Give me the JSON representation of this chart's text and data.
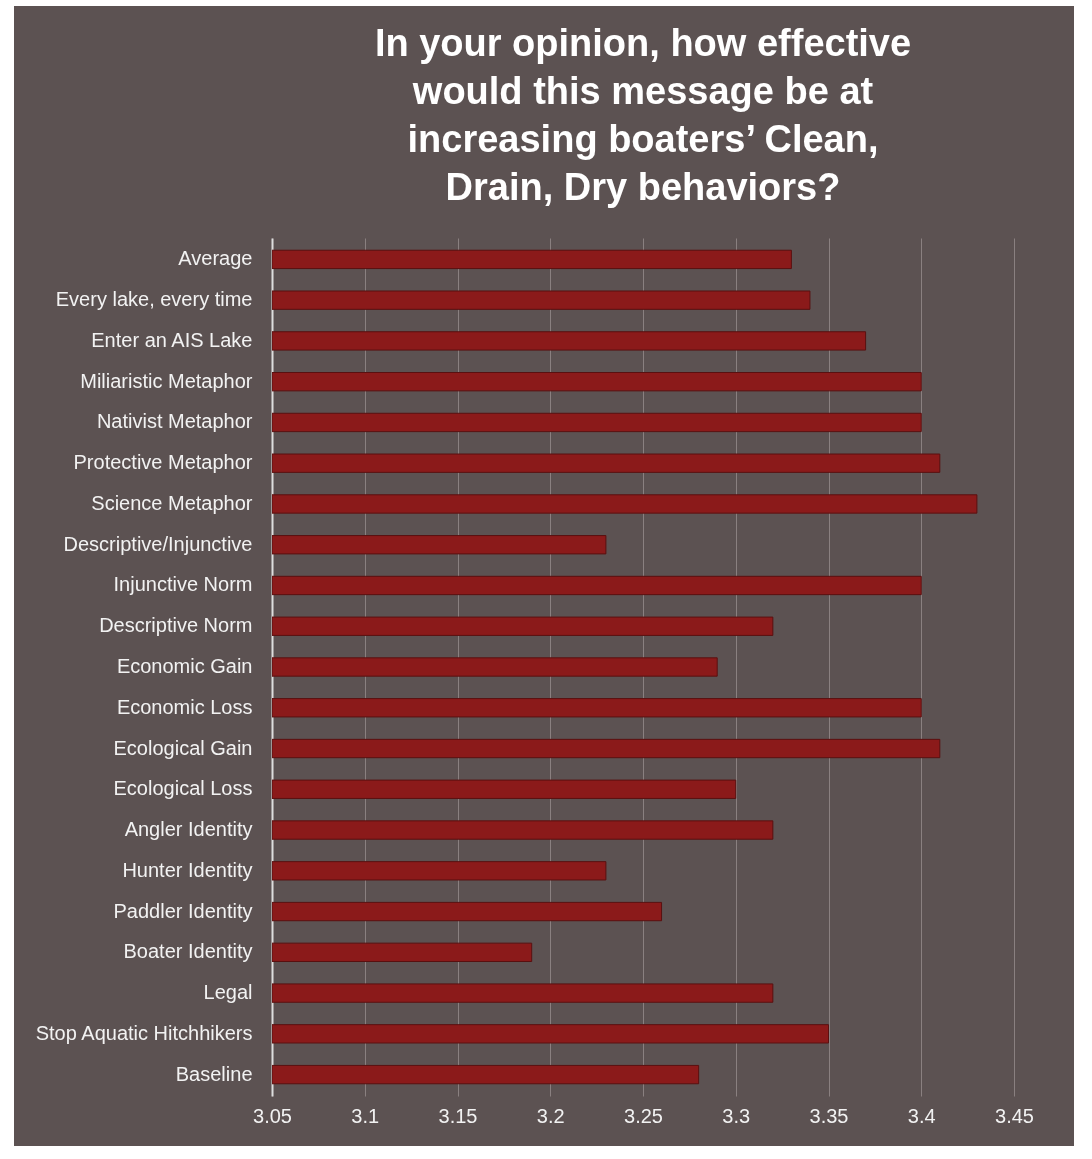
{
  "chart_data": {
    "type": "bar",
    "orientation": "horizontal",
    "title": "In your opinion, how effective would this message be at increasing boaters’ Clean, Drain, Dry behaviors?",
    "categories": [
      "Average",
      "Every lake, every time",
      "Enter an AIS Lake",
      "Miliaristic Metaphor",
      "Nativist Metaphor",
      "Protective Metaphor",
      "Science Metaphor",
      "Descriptive/Injunctive",
      "Injunctive Norm",
      "Descriptive Norm",
      "Economic Gain",
      "Economic Loss",
      "Ecological Gain",
      "Ecological Loss",
      "Angler Identity",
      "Hunter Identity",
      "Paddler Identity",
      "Boater Identity",
      "Legal",
      "Stop Aquatic Hitchhikers",
      "Baseline"
    ],
    "values": [
      3.33,
      3.34,
      3.37,
      3.4,
      3.4,
      3.41,
      3.43,
      3.23,
      3.4,
      3.32,
      3.29,
      3.4,
      3.41,
      3.3,
      3.32,
      3.23,
      3.26,
      3.19,
      3.32,
      3.35,
      3.28
    ],
    "color": "#8b1a1a",
    "xlim": [
      3.05,
      3.45
    ],
    "xticks": [
      3.05,
      3.1,
      3.15,
      3.2,
      3.25,
      3.3,
      3.35,
      3.4,
      3.45
    ],
    "grid": "x"
  }
}
